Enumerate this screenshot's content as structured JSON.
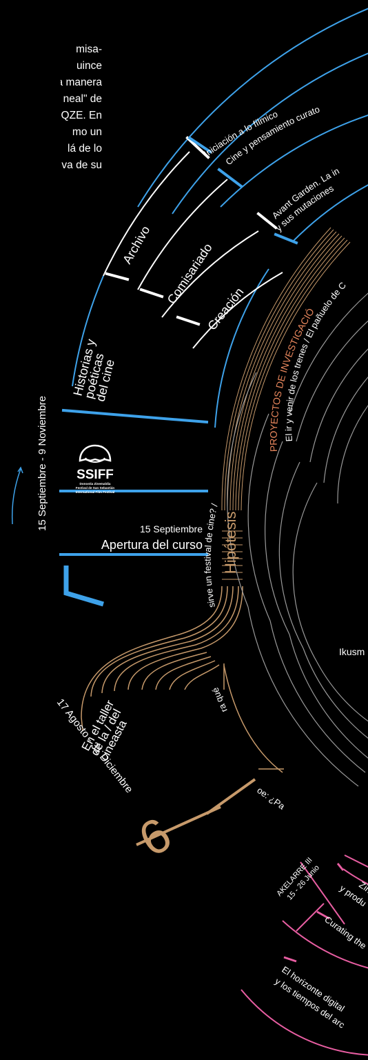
{
  "intro_lines": [
    "misa-",
    "uince",
    "a manera",
    "neal\" de",
    "EQZE.  En",
    "mo un",
    "lá de lo",
    "va de su"
  ],
  "colors": {
    "blue": "#3ea2ea",
    "gold": "#c79a6b",
    "pink": "#e85ea2",
    "white": "#ffffff",
    "grey": "#9a9a9a",
    "bg": "#000000"
  },
  "logo": {
    "name": "SSIFF",
    "subtitle": [
      "Donostia Zinemaldia",
      "Festival de San Sebastián",
      "International Film Festival"
    ]
  },
  "blue_block": {
    "date_range": "15 Septiembre - 9 Noviembre",
    "opening_date": "15 Septiembre",
    "opening_label": "Apertura del curso",
    "number": "1",
    "section": [
      "Historias y",
      "poéticas",
      "del cine"
    ],
    "sub_sections": [
      "Archivo",
      "Comisariado",
      "Creación"
    ],
    "outer_topics": [
      "Iniciación a lo fílmico",
      "Cine y pensamiento curato",
      "Avant Garden. La in",
      "y sus mutaciones"
    ]
  },
  "gold_block": {
    "hypothesis": "Hipótesis",
    "research_title": "PROYECTOS DE INVESTIGACIÓ",
    "research_line1": "El ir y venir de los trenes / El pañuelo de C",
    "research_line2": "sirve un festival de cine? / ",
    "research_line3": "ra qué",
    "research_line4": "oe: ¿Pa",
    "workshop": [
      "En el taller",
      "de la / del",
      "cineasta"
    ],
    "date_range": "17 Agosto - 31 Diciembre",
    "number": "6"
  },
  "center_label": "Ikusm",
  "pink_block": {
    "title": "AKELARRE III",
    "dates": "15 - 26 Junio",
    "topic1a": "Ziner",
    "topic1b": "y produ",
    "topic2": "Curating the",
    "topic3a": "El horizonte digital",
    "topic3b": "y los tiempos del arc"
  }
}
